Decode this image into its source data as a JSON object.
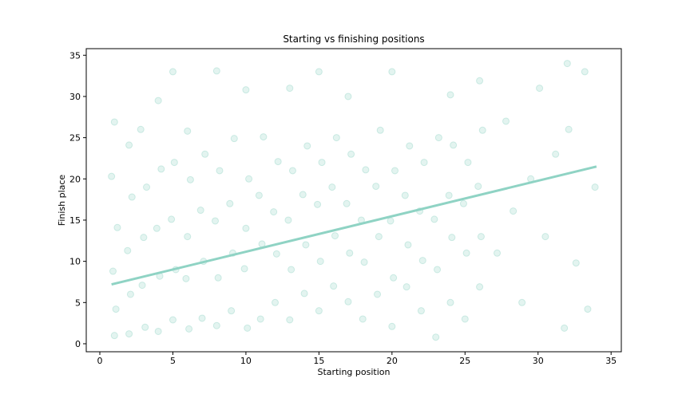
{
  "chart_data": {
    "type": "scatter",
    "title": "Starting vs finishing positions",
    "x_label": "Starting position",
    "y_label": "Finish place",
    "color": "#8fd3c4",
    "point_opacity": 0.25,
    "xlim": [
      -0.93,
      35.7
    ],
    "ylim": [
      -0.97,
      35.8
    ],
    "xticks": [
      0,
      5,
      10,
      15,
      20,
      25,
      30,
      35
    ],
    "yticks": [
      0,
      5,
      10,
      15,
      20,
      25,
      30,
      35
    ],
    "grid": false,
    "x": [
      1.0,
      1.1,
      0.9,
      1.2,
      0.8,
      1.0,
      2.0,
      2.1,
      1.9,
      2.2,
      2.0,
      3.1,
      2.9,
      3.0,
      3.2,
      2.8,
      4.0,
      4.1,
      3.9,
      4.2,
      4.0,
      5.0,
      5.2,
      4.9,
      5.1,
      5.0,
      6.1,
      5.9,
      6.0,
      6.2,
      6.0,
      7.0,
      7.1,
      6.9,
      7.2,
      8.0,
      8.1,
      7.9,
      8.2,
      8.0,
      9.0,
      9.1,
      8.9,
      9.2,
      10.1,
      9.9,
      10.0,
      10.2,
      10.0,
      11.0,
      11.1,
      10.9,
      11.2,
      12.0,
      12.1,
      11.9,
      12.2,
      13.0,
      13.1,
      12.9,
      13.2,
      13.0,
      14.0,
      14.1,
      13.9,
      14.2,
      15.0,
      15.1,
      14.9,
      15.2,
      15.0,
      16.0,
      16.1,
      15.9,
      16.2,
      17.0,
      17.1,
      16.9,
      17.2,
      17.0,
      18.0,
      18.1,
      17.9,
      18.2,
      19.0,
      19.1,
      18.9,
      19.2,
      20.0,
      20.1,
      19.9,
      20.2,
      20.0,
      21.0,
      21.1,
      20.9,
      21.2,
      22.0,
      22.1,
      21.9,
      22.2,
      23.0,
      23.1,
      22.9,
      23.2,
      24.0,
      24.1,
      23.9,
      24.2,
      24.0,
      25.0,
      25.1,
      24.9,
      25.2,
      26.0,
      26.1,
      25.9,
      26.2,
      26.0,
      27.2,
      27.8,
      28.3,
      28.9,
      29.5,
      30.1,
      30.5,
      31.2,
      31.8,
      32.1,
      32.6,
      33.2,
      33.4,
      33.9,
      32.0
    ],
    "y": [
      1.0,
      4.2,
      8.8,
      14.1,
      20.3,
      26.9,
      1.2,
      6.0,
      11.3,
      17.8,
      24.1,
      2.0,
      7.1,
      12.9,
      19.0,
      26.0,
      1.5,
      8.2,
      14.0,
      21.2,
      29.5,
      2.9,
      9.0,
      15.1,
      22.0,
      33.0,
      1.8,
      7.9,
      13.0,
      19.9,
      25.8,
      3.1,
      10.0,
      16.2,
      23.0,
      2.2,
      8.0,
      14.9,
      21.0,
      33.1,
      4.0,
      11.0,
      17.0,
      24.9,
      1.9,
      9.1,
      14.0,
      20.0,
      30.8,
      3.0,
      12.1,
      18.0,
      25.1,
      5.0,
      10.9,
      16.0,
      22.1,
      2.9,
      9.0,
      15.0,
      21.0,
      31.0,
      6.1,
      12.0,
      18.1,
      24.0,
      4.0,
      10.0,
      16.9,
      22.0,
      33.0,
      7.0,
      13.1,
      19.0,
      25.0,
      5.1,
      11.0,
      17.0,
      23.0,
      30.0,
      3.0,
      9.9,
      15.0,
      21.1,
      6.0,
      13.0,
      19.1,
      25.9,
      2.1,
      8.0,
      14.9,
      21.0,
      33.0,
      6.9,
      12.0,
      18.0,
      24.0,
      4.0,
      10.1,
      16.1,
      22.0,
      0.8,
      9.0,
      15.1,
      25.0,
      5.0,
      12.9,
      18.0,
      24.1,
      30.2,
      3.0,
      11.0,
      17.0,
      22.0,
      6.9,
      13.0,
      19.1,
      25.9,
      31.9,
      11.0,
      27.0,
      16.1,
      5.0,
      20.0,
      31.0,
      13.0,
      23.0,
      1.9,
      26.0,
      9.8,
      33.0,
      4.2,
      19.0,
      34.0
    ],
    "trend_line": {
      "x": [
        0.8,
        34.0
      ],
      "y": [
        7.2,
        21.5
      ]
    }
  }
}
